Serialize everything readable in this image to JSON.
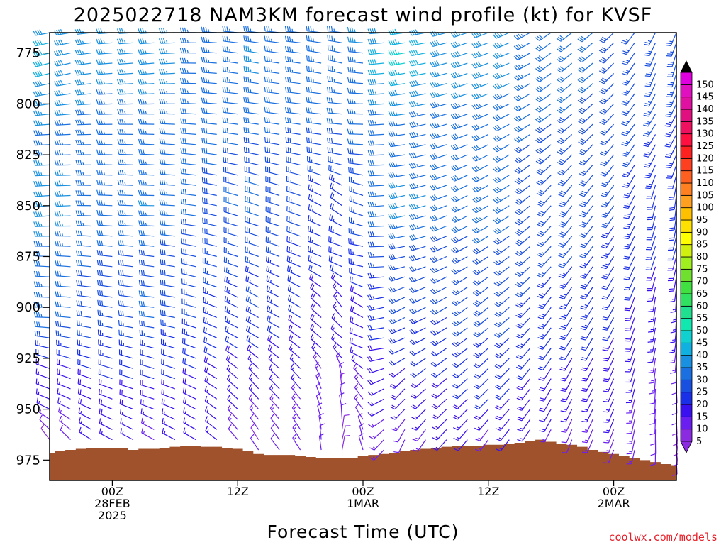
{
  "chart_data": {
    "type": "wind_barb_profile",
    "title": "2025022718 NAM3KM forecast wind profile (kt) for KVSF",
    "xlabel": "Forecast Time (UTC)",
    "ylabel": "",
    "credit": "coolwx.com/models",
    "x_unit": "forecast hour from 2025-02-27 18Z",
    "x_range": [
      0,
      60
    ],
    "y_unit": "hPa",
    "y_range": [
      985,
      765
    ],
    "x_ticks": [
      {
        "hour": 6,
        "lines": [
          "00Z",
          "28FEB",
          "2025"
        ]
      },
      {
        "hour": 18,
        "lines": [
          "12Z"
        ]
      },
      {
        "hour": 30,
        "lines": [
          "00Z",
          "1MAR"
        ]
      },
      {
        "hour": 42,
        "lines": [
          "12Z"
        ]
      },
      {
        "hour": 54,
        "lines": [
          "00Z",
          "2MAR"
        ]
      }
    ],
    "y_ticks": [
      775,
      800,
      825,
      850,
      875,
      900,
      925,
      950,
      975
    ],
    "colorbar": {
      "unit": "kt",
      "levels": [
        5,
        10,
        15,
        20,
        25,
        30,
        35,
        40,
        45,
        50,
        55,
        60,
        65,
        70,
        75,
        80,
        85,
        90,
        95,
        100,
        105,
        110,
        115,
        120,
        125,
        130,
        135,
        140,
        145,
        150
      ],
      "colors": [
        "#8a2be2",
        "#6a1ff0",
        "#3a10f0",
        "#1a30e8",
        "#1a50e0",
        "#1a70e0",
        "#1a90e0",
        "#10b0e0",
        "#10d0d0",
        "#10e8b0",
        "#20e090",
        "#30e060",
        "#40e040",
        "#70e030",
        "#a0f020",
        "#d0f010",
        "#ffff00",
        "#ffe000",
        "#ffc000",
        "#ffa020",
        "#ff8020",
        "#ff6020",
        "#ff4020",
        "#ff2020",
        "#ff1040",
        "#f01060",
        "#e01080",
        "#e010a0",
        "#e010c0",
        "#e000e0"
      ],
      "arrow_low": "#8a2be2",
      "arrow_high": "#000000"
    },
    "terrain": {
      "color": "#a0522d",
      "hours": [
        0,
        1,
        2,
        3,
        4,
        5,
        6,
        7,
        8,
        9,
        10,
        11,
        12,
        13,
        14,
        15,
        16,
        17,
        18,
        19,
        20,
        21,
        22,
        23,
        24,
        25,
        26,
        27,
        28,
        29,
        30,
        31,
        32,
        33,
        34,
        35,
        36,
        37,
        38,
        39,
        40,
        41,
        42,
        43,
        44,
        45,
        46,
        47,
        48,
        49,
        50,
        51,
        52,
        53,
        54,
        55,
        56,
        57,
        58,
        59,
        60
      ],
      "pressure": [
        971.5,
        970.5,
        970.0,
        969.5,
        969.0,
        969.0,
        969.0,
        969.0,
        970.0,
        969.5,
        969.5,
        969.0,
        968.5,
        968.0,
        968.0,
        968.5,
        968.5,
        969.0,
        969.5,
        970.5,
        972.0,
        972.5,
        972.5,
        972.5,
        973.0,
        973.5,
        974.0,
        974.0,
        974.0,
        974.0,
        973.0,
        972.5,
        972.0,
        971.5,
        970.5,
        970.0,
        969.5,
        969.0,
        968.5,
        968.0,
        968.0,
        968.0,
        967.5,
        967.5,
        967.0,
        966.5,
        965.5,
        965.0,
        966.0,
        967.0,
        967.5,
        968.5,
        970.0,
        971.0,
        972.0,
        973.0,
        974.0,
        975.0,
        976.0,
        977.0,
        977.5
      ]
    },
    "wind_grid": {
      "hours": [
        0,
        2,
        4,
        6,
        8,
        10,
        12,
        14,
        16,
        18,
        20,
        22,
        24,
        26,
        28,
        30,
        32,
        34,
        36,
        38,
        40,
        42,
        44,
        46,
        48,
        50,
        52,
        54,
        56,
        58,
        60
      ],
      "levels": [
        765,
        770,
        775,
        780,
        785,
        790,
        795,
        800,
        805,
        810,
        815,
        820,
        825,
        830,
        835,
        840,
        845,
        850,
        855,
        860,
        865,
        870,
        875,
        880,
        885,
        890,
        895,
        900,
        905,
        910,
        915,
        920,
        925,
        930,
        935,
        940,
        945,
        950,
        955,
        960,
        965,
        970,
        975
      ],
      "anchors": [
        {
          "h": 0,
          "p": 780,
          "spd": 42,
          "dir": 255
        },
        {
          "h": 0,
          "p": 850,
          "spd": 40,
          "dir": 265
        },
        {
          "h": 0,
          "p": 900,
          "spd": 35,
          "dir": 270
        },
        {
          "h": 0,
          "p": 940,
          "spd": 15,
          "dir": 290
        },
        {
          "h": 0,
          "p": 970,
          "spd": 7,
          "dir": 330
        },
        {
          "h": 10,
          "p": 780,
          "spd": 38,
          "dir": 265
        },
        {
          "h": 10,
          "p": 850,
          "spd": 36,
          "dir": 270
        },
        {
          "h": 10,
          "p": 900,
          "spd": 32,
          "dir": 275
        },
        {
          "h": 10,
          "p": 940,
          "spd": 20,
          "dir": 285
        },
        {
          "h": 10,
          "p": 965,
          "spd": 12,
          "dir": 300
        },
        {
          "h": 20,
          "p": 780,
          "spd": 36,
          "dir": 280
        },
        {
          "h": 20,
          "p": 850,
          "spd": 32,
          "dir": 290
        },
        {
          "h": 20,
          "p": 900,
          "spd": 26,
          "dir": 300
        },
        {
          "h": 20,
          "p": 940,
          "spd": 15,
          "dir": 320
        },
        {
          "h": 20,
          "p": 965,
          "spd": 8,
          "dir": 330
        },
        {
          "h": 28,
          "p": 780,
          "spd": 33,
          "dir": 285
        },
        {
          "h": 28,
          "p": 850,
          "spd": 20,
          "dir": 310
        },
        {
          "h": 28,
          "p": 900,
          "spd": 14,
          "dir": 330
        },
        {
          "h": 28,
          "p": 940,
          "spd": 8,
          "dir": 0
        },
        {
          "h": 28,
          "p": 965,
          "spd": 6,
          "dir": 20
        },
        {
          "h": 34,
          "p": 780,
          "spd": 48,
          "dir": 260
        },
        {
          "h": 34,
          "p": 850,
          "spd": 42,
          "dir": 255
        },
        {
          "h": 34,
          "p": 900,
          "spd": 28,
          "dir": 240
        },
        {
          "h": 34,
          "p": 940,
          "spd": 20,
          "dir": 220
        },
        {
          "h": 34,
          "p": 965,
          "spd": 10,
          "dir": 200
        },
        {
          "h": 42,
          "p": 780,
          "spd": 40,
          "dir": 250
        },
        {
          "h": 42,
          "p": 850,
          "spd": 35,
          "dir": 240
        },
        {
          "h": 42,
          "p": 900,
          "spd": 30,
          "dir": 230
        },
        {
          "h": 42,
          "p": 940,
          "spd": 22,
          "dir": 225
        },
        {
          "h": 42,
          "p": 965,
          "spd": 12,
          "dir": 215
        },
        {
          "h": 50,
          "p": 780,
          "spd": 32,
          "dir": 230
        },
        {
          "h": 50,
          "p": 850,
          "spd": 30,
          "dir": 215
        },
        {
          "h": 50,
          "p": 900,
          "spd": 25,
          "dir": 210
        },
        {
          "h": 50,
          "p": 940,
          "spd": 18,
          "dir": 205
        },
        {
          "h": 50,
          "p": 965,
          "spd": 10,
          "dir": 200
        },
        {
          "h": 60,
          "p": 780,
          "spd": 25,
          "dir": 195
        },
        {
          "h": 60,
          "p": 850,
          "spd": 20,
          "dir": 185
        },
        {
          "h": 60,
          "p": 900,
          "spd": 15,
          "dir": 180
        },
        {
          "h": 60,
          "p": 940,
          "spd": 10,
          "dir": 175
        },
        {
          "h": 60,
          "p": 965,
          "spd": 7,
          "dir": 170
        }
      ]
    }
  }
}
